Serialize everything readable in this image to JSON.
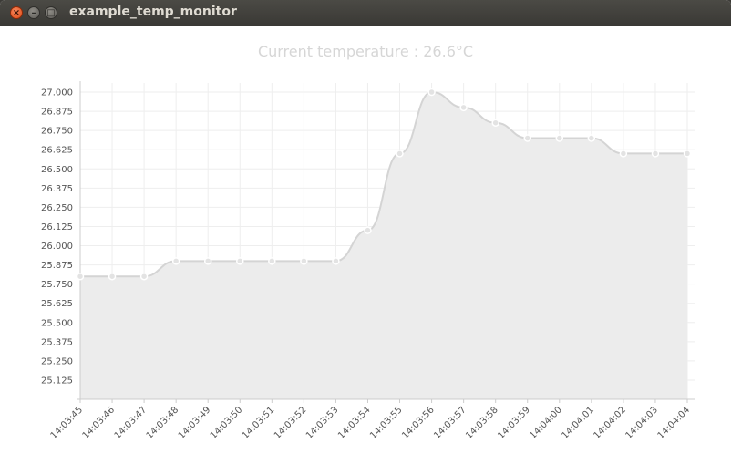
{
  "window": {
    "title": "example_temp_monitor",
    "buttons": {
      "close": "×",
      "minimize": "–",
      "maximize": "□"
    }
  },
  "chart_data": {
    "type": "area",
    "title": "Current temperature : 26.6°C",
    "xlabel": "",
    "ylabel": "",
    "categories": [
      "14:03:45",
      "14:03:46",
      "14:03:47",
      "14:03:48",
      "14:03:49",
      "14:03:50",
      "14:03:51",
      "14:03:52",
      "14:03:53",
      "14:03:54",
      "14:03:55",
      "14:03:56",
      "14:03:57",
      "14:03:58",
      "14:03:59",
      "14:04:00",
      "14:04:01",
      "14:04:02",
      "14:04:03",
      "14:04:04"
    ],
    "values": [
      25.8,
      25.8,
      25.8,
      25.9,
      25.9,
      25.9,
      25.9,
      25.9,
      25.9,
      26.1,
      26.6,
      27.0,
      26.9,
      26.8,
      26.7,
      26.7,
      26.7,
      26.6,
      26.6,
      26.6
    ],
    "y_ticks": [
      "27.000",
      "26.875",
      "26.750",
      "26.625",
      "26.500",
      "26.375",
      "26.250",
      "26.125",
      "26.000",
      "25.875",
      "25.750",
      "25.625",
      "25.500",
      "25.375",
      "25.250",
      "25.125"
    ],
    "ylim": [
      25.0,
      27.0
    ],
    "grid": true,
    "legend": "none",
    "colors": {
      "fill": "#ececec",
      "line": "#d4d4d4",
      "point": "#e3e3e3",
      "grid": "#eeeeee",
      "axis": "#cccccc"
    }
  }
}
